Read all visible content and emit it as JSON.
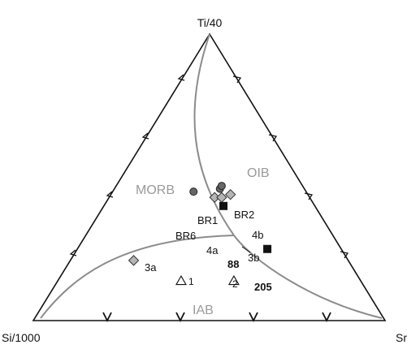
{
  "chart_data": {
    "type": "ternary-scatter",
    "vertices": {
      "top": "Ti/40",
      "left": "Si/1000",
      "right": "Sr"
    },
    "fields": [
      "MORB",
      "OIB",
      "IAB"
    ],
    "colors": {
      "boundary": "#8c8c8c",
      "axis": "#111111",
      "field_label": "#9a9a9a",
      "gray_fill": "#b5b5b5",
      "circle_fill": "#666666",
      "square_fill": "#111111"
    },
    "points": [
      {
        "label": "BR1",
        "symbol": "circle",
        "Ti": 0.46,
        "Si": 0.24,
        "Sr": 0.3
      },
      {
        "label": "BR2",
        "symbol": "circle",
        "Ti": 0.47,
        "Si": 0.23,
        "Sr": 0.3
      },
      {
        "label": "BR6",
        "symbol": "circle",
        "Ti": 0.45,
        "Si": 0.32,
        "Sr": 0.23
      },
      {
        "label": "4b",
        "symbol": "diamond",
        "Ti": 0.44,
        "Si": 0.22,
        "Sr": 0.34
      },
      {
        "label": "4a",
        "symbol": "diamond",
        "Ti": 0.43,
        "Si": 0.27,
        "Sr": 0.3
      },
      {
        "label": "3b",
        "symbol": "diamond",
        "Ti": 0.43,
        "Si": 0.25,
        "Sr": 0.32
      },
      {
        "label": "3a",
        "symbol": "diamond",
        "Ti": 0.21,
        "Si": 0.61,
        "Sr": 0.18
      },
      {
        "label": "88",
        "symbol": "square",
        "Ti": 0.4,
        "Si": 0.26,
        "Sr": 0.34
      },
      {
        "label": "205",
        "symbol": "square",
        "Ti": 0.25,
        "Si": 0.21,
        "Sr": 0.54
      },
      {
        "label": "1",
        "symbol": "triangle",
        "Ti": 0.14,
        "Si": 0.51,
        "Sr": 0.35
      },
      {
        "label": "2",
        "symbol": "triangle",
        "Ti": 0.14,
        "Si": 0.36,
        "Sr": 0.5
      }
    ]
  }
}
